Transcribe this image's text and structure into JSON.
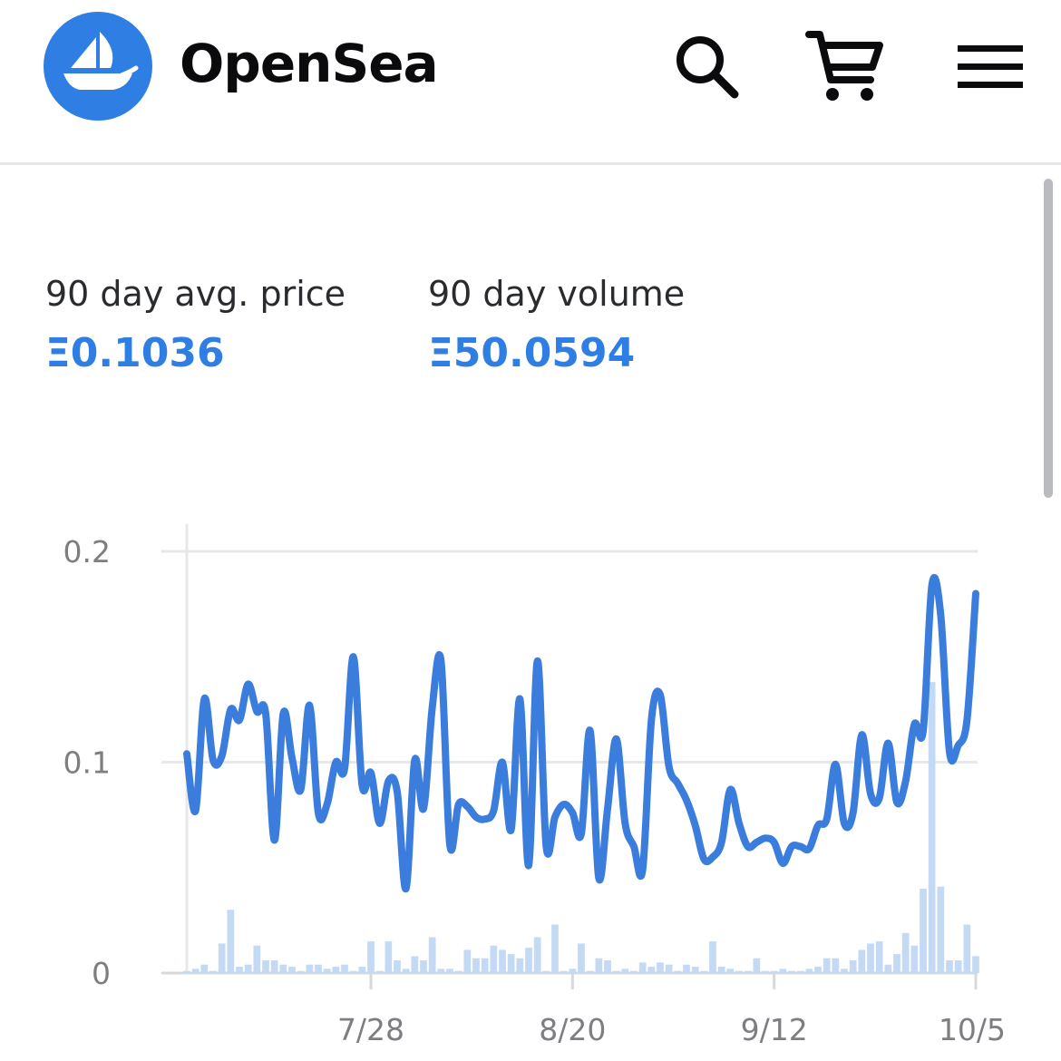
{
  "header": {
    "brand": "OpenSea",
    "brand_color": "#2f7ee3",
    "icons": [
      "ship-logo-icon",
      "search-icon",
      "cart-icon",
      "menu-icon"
    ]
  },
  "stats": [
    {
      "label": "90 day avg. price",
      "value": "Ξ0.1036"
    },
    {
      "label": "90 day volume",
      "value": "Ξ50.0594"
    }
  ],
  "chart_data": {
    "type": "line",
    "title": "",
    "xlabel": "",
    "ylabel": "",
    "ylim": [
      0,
      0.2
    ],
    "yticks": [
      "0",
      "0.1",
      "0.2"
    ],
    "x_ticks": [
      {
        "label": "7/28",
        "day": 22
      },
      {
        "label": "8/20",
        "day": 45
      },
      {
        "label": "9/12",
        "day": 68
      },
      {
        "label": "10/5",
        "day": 91
      }
    ],
    "grid": true,
    "line_color": "#3b7ddd",
    "bar_color": "#c4daf4",
    "series": [
      {
        "type": "line",
        "values": [
          0.104,
          0.077,
          0.13,
          0.101,
          0.103,
          0.125,
          0.12,
          0.137,
          0.124,
          0.123,
          0.063,
          0.123,
          0.102,
          0.087,
          0.127,
          0.076,
          0.08,
          0.1,
          0.097,
          0.15,
          0.089,
          0.095,
          0.071,
          0.091,
          0.086,
          0.04,
          0.101,
          0.078,
          0.126,
          0.148,
          0.061,
          0.08,
          0.079,
          0.074,
          0.073,
          0.077,
          0.1,
          0.068,
          0.13,
          0.051,
          0.148,
          0.06,
          0.074,
          0.08,
          0.076,
          0.066,
          0.115,
          0.045,
          0.078,
          0.111,
          0.071,
          0.06,
          0.049,
          0.12,
          0.132,
          0.098,
          0.09,
          0.082,
          0.07,
          0.054,
          0.055,
          0.062,
          0.087,
          0.071,
          0.06,
          0.062,
          0.064,
          0.062,
          0.052,
          0.06,
          0.06,
          0.059,
          0.07,
          0.073,
          0.099,
          0.071,
          0.076,
          0.113,
          0.085,
          0.083,
          0.109,
          0.081,
          0.091,
          0.118,
          0.115,
          0.184,
          0.17,
          0.105,
          0.108,
          0.12,
          0.18
        ]
      },
      {
        "type": "bar",
        "values": [
          0.001,
          0.002,
          0.004,
          0.001,
          0.014,
          0.03,
          0.003,
          0.004,
          0.013,
          0.006,
          0.006,
          0.004,
          0.003,
          0.001,
          0.004,
          0.004,
          0.002,
          0.003,
          0.004,
          0.001,
          0.003,
          0.015,
          0.001,
          0.015,
          0.006,
          0.002,
          0.008,
          0.006,
          0.017,
          0.002,
          0.002,
          0.001,
          0.011,
          0.007,
          0.007,
          0.013,
          0.011,
          0.009,
          0.007,
          0.012,
          0.017,
          0.001,
          0.023,
          0.001,
          0.002,
          0.014,
          0.001,
          0.007,
          0.006,
          0.001,
          0.002,
          0.001,
          0.005,
          0.003,
          0.005,
          0.004,
          0.001,
          0.004,
          0.003,
          0.001,
          0.015,
          0.003,
          0.002,
          0.001,
          0.001,
          0.007,
          0.001,
          0.001,
          0.002,
          0.001,
          0.001,
          0.002,
          0.003,
          0.007,
          0.007,
          0.002,
          0.006,
          0.011,
          0.014,
          0.015,
          0.004,
          0.009,
          0.019,
          0.013,
          0.04,
          0.138,
          0.041,
          0.006,
          0.006,
          0.023,
          0.008
        ]
      }
    ]
  }
}
